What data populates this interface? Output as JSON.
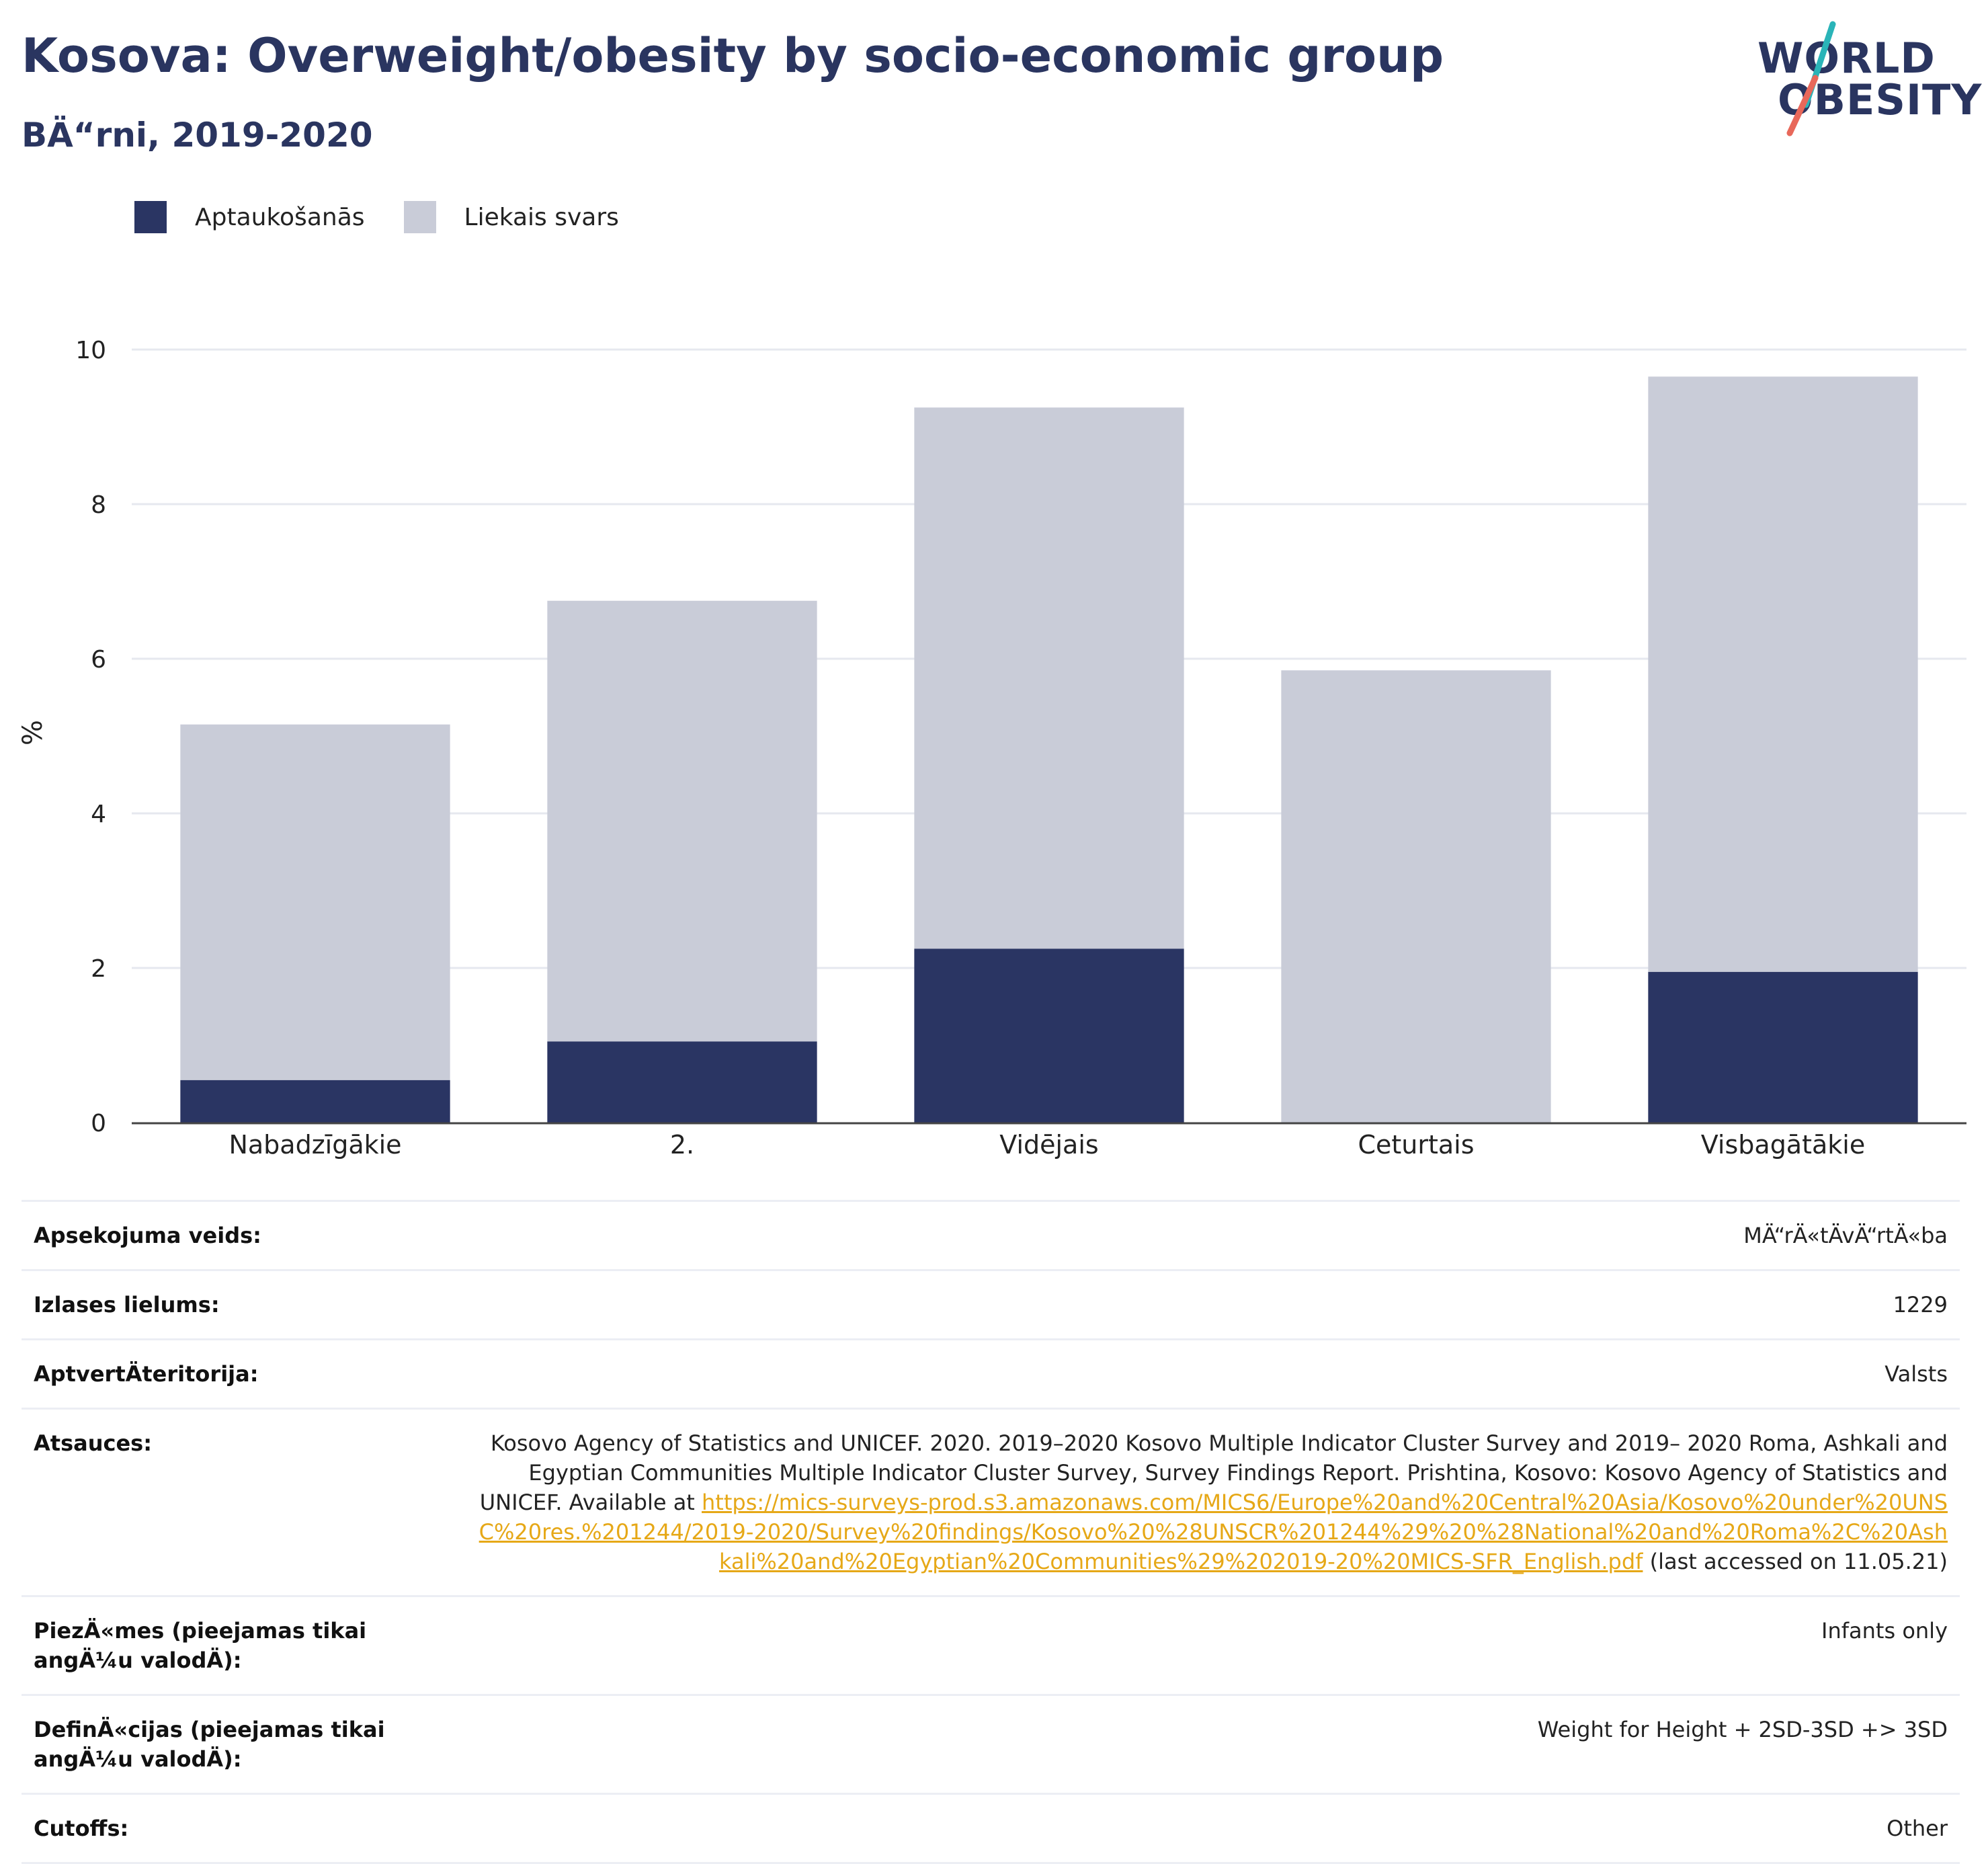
{
  "header": {
    "title": "Kosova: Overweight/obesity by socio-economic group",
    "subtitle": "BÄ“rni, 2019-2020"
  },
  "logo": {
    "line1": "WORLD",
    "line2": "OBESITY",
    "slash_colors": [
      "#2ab4b8",
      "#e8685a"
    ]
  },
  "legend": [
    {
      "label": "Aptaukošanās",
      "color": "#2a3563"
    },
    {
      "label": "Liekais svars",
      "color": "#c9ccd8"
    }
  ],
  "chart_data": {
    "type": "bar",
    "stacked": true,
    "categories": [
      "Nabadzīgākie",
      "2.",
      "Vidējais",
      "Ceturtais",
      "Visbagātākie"
    ],
    "series": [
      {
        "name": "Aptaukošanās",
        "color": "#2a3563",
        "values": [
          0.55,
          1.05,
          2.25,
          0,
          1.95
        ]
      },
      {
        "name": "Liekais svars",
        "color": "#c9ccd8",
        "values": [
          4.6,
          5.7,
          7.0,
          5.85,
          7.7
        ]
      }
    ],
    "xlabel": "",
    "ylabel": "%",
    "ylim": [
      0,
      10
    ],
    "yticks": [
      "0",
      "2",
      "4",
      "6",
      "8",
      "10"
    ],
    "grid": true
  },
  "info": [
    {
      "key": "Apsekojuma veids:",
      "value": "MÄ“rÄ«tÄvÄ“rtÄ«ba"
    },
    {
      "key": "Izlases lielums:",
      "value": "1229"
    },
    {
      "key": "AptvertÄteritorija:",
      "value": "Valsts"
    },
    {
      "key": "Atsauces:",
      "value": "Kosovo Agency of Statistics and UNICEF. 2020. 2019–2020 Kosovo Multiple Indicator Cluster Survey and 2019– 2020 Roma, Ashkali and Egyptian Communities Multiple Indicator Cluster Survey, Survey Findings Report. Prishtina, Kosovo: Kosovo Agency of Statistics and UNICEF. Available at ",
      "link": "https://mics-surveys-prod.s3.amazonaws.com/MICS6/Europe%20and%20Central%20Asia/Kosovo%20under%20UNSC%20res.%201244/2019-2020/Survey%20findings/Kosovo%20%28UNSCR%201244%29%20%28National%20and%20Roma%2C%20Ashkali%20and%20Egyptian%20Communities%29%202019-20%20MICS-SFR_English.pdf",
      "suffix": " (last accessed on 11.05.21)"
    },
    {
      "key": "PiezÄ«mes (pieejamas tikai angÄ¼u valodÄ):",
      "value": "Infants only"
    },
    {
      "key": "DefinÄ«cijas (pieejamas tikai angÄ¼u valodÄ):",
      "value": "Weight for Height + 2SD-3SD +> 3SD"
    },
    {
      "key": "Cutoffs:",
      "value": "Other"
    }
  ]
}
